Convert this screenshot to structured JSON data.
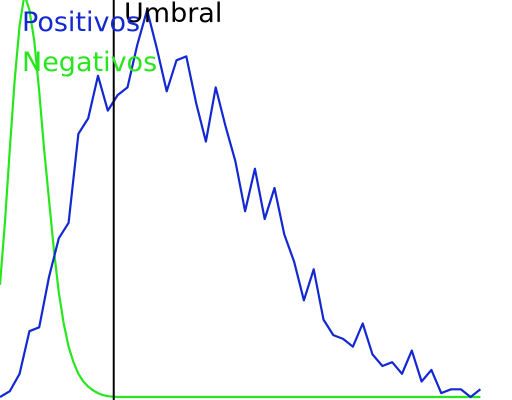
{
  "chart_data": {
    "type": "line",
    "title": "",
    "xlabel": "",
    "ylabel": "",
    "xlim": [
      0,
      51
    ],
    "ylim": [
      0,
      100
    ],
    "grid": false,
    "legend": {
      "placement": "top-left"
    },
    "threshold": {
      "label": "Umbral",
      "x": 11.6,
      "color": "#000000"
    },
    "series": [
      {
        "name": "Positivos",
        "color": "#1428d2",
        "x": [
          0,
          1,
          2,
          3,
          4,
          5,
          6,
          7,
          8,
          9,
          10,
          11,
          12,
          13,
          14,
          15,
          16,
          17,
          18,
          19,
          20,
          21,
          22,
          23,
          24,
          25,
          26,
          27,
          28,
          29,
          30,
          31,
          32,
          33,
          34,
          35,
          36,
          37,
          38,
          39,
          40,
          41,
          42,
          43,
          44,
          45,
          46,
          47,
          48,
          49
        ],
        "values": [
          0,
          1.5,
          6,
          17,
          18,
          31,
          41,
          45,
          68,
          72,
          83,
          74,
          78,
          80,
          91,
          100,
          90,
          79,
          87,
          88,
          76,
          66,
          80,
          70,
          61,
          48,
          59,
          46,
          54,
          42,
          35,
          25,
          33,
          20,
          16,
          15,
          13,
          19,
          11,
          8,
          9,
          6,
          12,
          4,
          7,
          1,
          2,
          2,
          0,
          2
        ]
      },
      {
        "name": "Negativos",
        "color": "#28e61e",
        "x": [
          0,
          0.5,
          1,
          1.5,
          2,
          2.5,
          3,
          3.5,
          4,
          4.5,
          5,
          5.5,
          6,
          6.5,
          7,
          7.5,
          8,
          8.5,
          9,
          9.5,
          10,
          10.5,
          11,
          11.5,
          12,
          13,
          14,
          16,
          20,
          30,
          40,
          49
        ],
        "values": [
          29,
          45,
          64,
          82,
          96,
          104,
          100,
          92,
          79,
          64,
          51,
          38,
          27,
          19,
          13,
          9,
          6,
          4,
          2.7,
          1.7,
          1.0,
          0.5,
          0.2,
          0.1,
          0,
          0,
          0,
          0,
          0,
          0,
          0,
          0
        ]
      }
    ]
  }
}
